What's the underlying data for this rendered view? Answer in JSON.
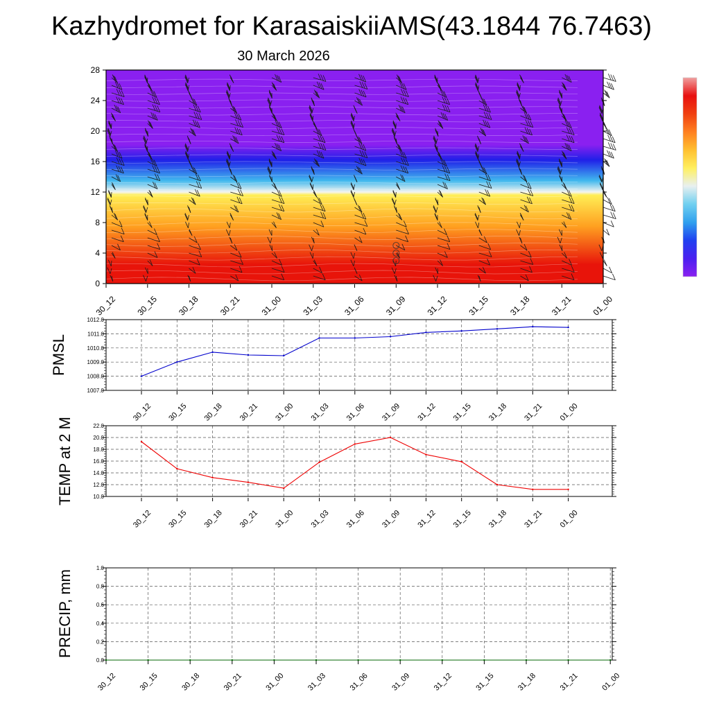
{
  "title": "Kazhydromet for KarasaiskiiAMS(43.1844 76.7463)",
  "subtitle": "30 March 2026",
  "time_labels": [
    "30_12",
    "30_15",
    "30_18",
    "30_21",
    "31_00",
    "31_03",
    "31_06",
    "31_09",
    "31_12",
    "31_15",
    "31_18",
    "31_21",
    "01_00"
  ],
  "chart_data": [
    {
      "type": "heatmap",
      "name": "vertical-profile",
      "description_units": "height (km) vs time, filled temperature with wind barbs",
      "x": [
        "30_12",
        "30_15",
        "30_18",
        "30_21",
        "31_00",
        "31_03",
        "31_06",
        "31_09",
        "31_12",
        "31_15",
        "31_18",
        "31_21",
        "01_00"
      ],
      "ylim": [
        0,
        28
      ],
      "yticks": [
        "0",
        "4",
        "8",
        "12",
        "16",
        "20",
        "24",
        "28"
      ],
      "tick_values": [
        0,
        4,
        8,
        12,
        16,
        20,
        24,
        28
      ],
      "layers_top_km": [
        3,
        8,
        12,
        14,
        16.5,
        18,
        28
      ],
      "colors": {
        "red": "#e8140a",
        "orange": "#ffa020",
        "yellow": "#ffee55",
        "white": "#f5f5f0",
        "cyan": "#40b8ee",
        "blue": "#2020e8",
        "violet": "#8a20f0"
      },
      "colorbar_colors": [
        "#8a20f0",
        "#4a20f0",
        "#2040f0",
        "#30a0ee",
        "#70d0f0",
        "#e8f0f0",
        "#fff060",
        "#ffc030",
        "#ff8020",
        "#f04010",
        "#e81010",
        "#f0a0a0"
      ]
    },
    {
      "type": "line",
      "name": "pmsl",
      "ylabel": "PMSL",
      "x": [
        "30_12",
        "30_15",
        "30_18",
        "30_21",
        "31_00",
        "31_03",
        "31_06",
        "31_09",
        "31_12",
        "31_15",
        "31_18",
        "31_21",
        "01_00"
      ],
      "values": [
        1008.0,
        1009.0,
        1009.7,
        1009.5,
        1009.45,
        1010.7,
        1010.7,
        1010.8,
        1011.1,
        1011.2,
        1011.35,
        1011.5,
        1011.45
      ],
      "ylim": [
        1007.0,
        1012.0
      ],
      "yticks": [
        "1007.0",
        "1008.0",
        "1009.0",
        "1010.0",
        "1011.0",
        "1012.0"
      ],
      "tick_values": [
        1007,
        1008,
        1009,
        1010,
        1011,
        1012
      ],
      "color": "#0000cc"
    },
    {
      "type": "line",
      "name": "temp",
      "ylabel": "TEMP at 2 M",
      "x": [
        "30_12",
        "30_15",
        "30_18",
        "30_21",
        "31_00",
        "31_03",
        "31_06",
        "31_09",
        "31_12",
        "31_15",
        "31_18",
        "31_21",
        "01_00"
      ],
      "values": [
        19.3,
        14.7,
        13.2,
        12.4,
        11.4,
        15.8,
        18.9,
        20.0,
        17.1,
        15.9,
        12.0,
        11.2,
        11.2
      ],
      "ylim": [
        10.0,
        22.0
      ],
      "yticks": [
        "10.0",
        "12.0",
        "14.0",
        "16.0",
        "18.0",
        "20.0",
        "22.0"
      ],
      "tick_values": [
        10,
        12,
        14,
        16,
        18,
        20,
        22
      ],
      "color": "#ee0000"
    },
    {
      "type": "line",
      "name": "precip",
      "ylabel": "PRECIP, mm",
      "x": [
        "30_12",
        "30_15",
        "30_18",
        "30_21",
        "31_00",
        "31_03",
        "31_06",
        "31_09",
        "31_12",
        "31_15",
        "31_18",
        "31_21",
        "01_00"
      ],
      "values": [
        0,
        0,
        0,
        0,
        0,
        0,
        0,
        0,
        0,
        0,
        0,
        0,
        0
      ],
      "ylim": [
        0.0,
        1.0
      ],
      "yticks": [
        "0.0",
        "0.2",
        "0.4",
        "0.6",
        "0.8",
        "1.0"
      ],
      "tick_values": [
        0,
        0.2,
        0.4,
        0.6,
        0.8,
        1.0
      ],
      "color": "#006600"
    }
  ]
}
